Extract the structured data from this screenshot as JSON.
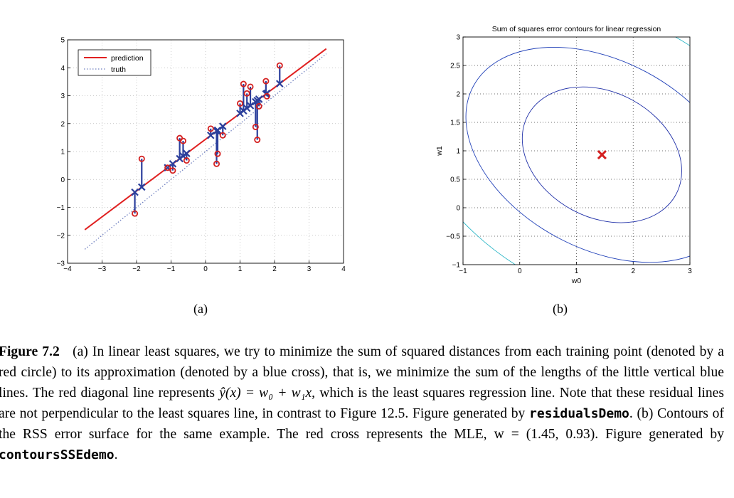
{
  "figure": {
    "panel_a_label": "(a)",
    "panel_b_label": "(b)",
    "caption": {
      "fig_label": "Figure 7.2",
      "text_1": "(a) In linear least squares, we try to minimize the sum of squared distances from each training point (denoted by a red circle) to its approximation (denoted by a blue cross), that is, we minimize the sum of the lengths of the little vertical blue lines. The red diagonal line represents ",
      "formula_1": "ŷ(x) = w₀ + w₁x,",
      "text_2": " which is the least squares regression line. Note that these residual lines are not perpendicular to the least squares line, in contrast to Figure 12.5. Figure generated by ",
      "code_1": "residualsDemo",
      "text_3": ". (b) Contours of the RSS error surface for the same example. The red cross represents the MLE, ",
      "formula_2": "w = (1.45, 0.93)",
      "text_4": ". Figure generated by ",
      "code_2": "contoursSSEdemo",
      "text_5": "."
    }
  },
  "chart_data": [
    {
      "type": "scatter",
      "title": "",
      "xlabel": "",
      "ylabel": "",
      "xlim": [
        -4,
        4
      ],
      "ylim": [
        -3,
        5
      ],
      "xticks": [
        -4,
        -3,
        -2,
        -1,
        0,
        1,
        2,
        3,
        4
      ],
      "yticks": [
        -3,
        -2,
        -1,
        0,
        1,
        2,
        3,
        4,
        5
      ],
      "tick_labels_x": [
        "−4",
        "−3",
        "−2",
        "−1",
        "0",
        "1",
        "2",
        "3",
        "4"
      ],
      "tick_labels_y": [
        "−3",
        "−2",
        "−1",
        "0",
        "1",
        "2",
        "3",
        "4",
        "5"
      ],
      "grid": true,
      "legend": {
        "placement": "top-left",
        "entries": [
          "prediction",
          "truth"
        ]
      },
      "prediction_line": {
        "name": "prediction",
        "color": "#e02020",
        "x": [
          -3.5,
          3.5
        ],
        "y": [
          -1.8,
          4.68
        ]
      },
      "truth_line": {
        "name": "truth",
        "color": "#7080c0",
        "x": [
          -3.5,
          3.5
        ],
        "y": [
          -2.5,
          4.5
        ]
      },
      "points_x": [
        -2.05,
        -1.85,
        -1.1,
        -0.95,
        -0.75,
        -0.65,
        -0.55,
        0.15,
        0.32,
        0.35,
        0.5,
        1.0,
        1.1,
        1.2,
        1.3,
        1.45,
        1.5,
        1.55,
        1.75,
        1.78,
        2.15
      ],
      "truth_y": [
        -1.22,
        0.74,
        0.42,
        0.32,
        1.48,
        1.38,
        0.68,
        1.82,
        0.56,
        0.92,
        1.58,
        2.72,
        3.42,
        3.08,
        3.32,
        1.88,
        1.42,
        2.62,
        3.52,
        2.98,
        4.08
      ],
      "circle_color": "#d42020",
      "cross_color": "#2b3f9c"
    },
    {
      "type": "contour",
      "title": "Sum of squares error contours for linear regression",
      "xlabel": "w0",
      "ylabel": "w1",
      "xlim": [
        -1,
        3
      ],
      "ylim": [
        -1,
        3
      ],
      "xticks": [
        -1,
        0,
        1,
        2,
        3
      ],
      "yticks": [
        -1,
        -0.5,
        0,
        0.5,
        1,
        1.5,
        2,
        2.5,
        3
      ],
      "tick_labels_x": [
        "−1",
        "0",
        "1",
        "2",
        "3"
      ],
      "tick_labels_y": [
        "−1",
        "−0.5",
        "0",
        "0.5",
        "1",
        "1.5",
        "2",
        "2.5",
        "3"
      ],
      "grid": true,
      "mle": {
        "w0": 1.45,
        "w1": 0.93,
        "color": "#d42020"
      },
      "contour_levels": [
        {
          "level": 1,
          "color": "#2030a8"
        },
        {
          "level": 2,
          "color": "#2040b8"
        },
        {
          "level": 3,
          "color": "#30b8c8"
        },
        {
          "level": 4,
          "color": "#d8d020"
        },
        {
          "level": 5,
          "color": "#c82828"
        }
      ]
    }
  ]
}
